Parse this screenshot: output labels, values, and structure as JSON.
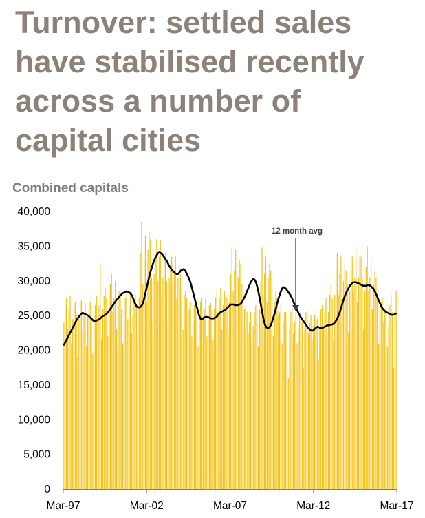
{
  "title_lines": [
    "Turnover: settled sales",
    "have stabilised recently",
    "across a number of",
    "capital cities"
  ],
  "chart_data": {
    "type": "bar",
    "subtitle": "Combined capitals",
    "ylim": [
      0,
      40000
    ],
    "y_ticks": [
      0,
      5000,
      10000,
      15000,
      20000,
      25000,
      30000,
      35000,
      40000
    ],
    "y_tick_labels": [
      "0",
      "5,000",
      "10,000",
      "15,000",
      "20,000",
      "25,000",
      "30,000",
      "35,000",
      "40,000"
    ],
    "x_tick_labels": [
      "Mar-97",
      "Mar-02",
      "Mar-07",
      "Mar-12",
      "Mar-17"
    ],
    "x_start": "Mar-97",
    "x_end": "Mar-17",
    "annotation": "12 month avg",
    "colors": {
      "bars": "#f5c317",
      "line": "#000000"
    },
    "series": [
      {
        "type": "bar",
        "values": [
          24000,
          26500,
          27500,
          23000,
          25800,
          27800,
          21000,
          24500,
          26200,
          27000,
          25000,
          19000,
          24500,
          27000,
          27300,
          22500,
          25000,
          26800,
          20500,
          24800,
          26000,
          27000,
          24800,
          19500,
          25000,
          26500,
          27800,
          24000,
          26500,
          32500,
          21500,
          26000,
          27800,
          29000,
          27500,
          22000,
          27000,
          29500,
          31000,
          25500,
          27500,
          30000,
          23000,
          27000,
          28500,
          27800,
          26000,
          21000,
          26000,
          27500,
          28000,
          24500,
          26500,
          28500,
          22500,
          25000,
          27500,
          28000,
          26500,
          21500,
          27500,
          34000,
          38500,
          29500,
          33000,
          36500,
          27000,
          34500,
          37000,
          36000,
          30500,
          24000,
          31000,
          33500,
          36000,
          30000,
          33500,
          35800,
          28000,
          30500,
          33500,
          34000,
          30000,
          23500,
          30500,
          32000,
          33500,
          29500,
          31500,
          33500,
          27500,
          30500,
          32500,
          31000,
          29000,
          23000,
          28000,
          28500,
          27500,
          25000,
          26000,
          27000,
          22000,
          24000,
          26500,
          27000,
          25500,
          20500,
          25000,
          27000,
          27500,
          24500,
          26000,
          27500,
          22000,
          24500,
          26500,
          26800,
          26000,
          21500,
          26000,
          27500,
          28500,
          25500,
          27500,
          29000,
          23000,
          26500,
          28500,
          28000,
          27500,
          23000,
          27000,
          31000,
          34800,
          28500,
          31500,
          34500,
          26000,
          30500,
          33000,
          32500,
          29500,
          23000,
          26000,
          26500,
          25500,
          22500,
          24000,
          25500,
          21000,
          23500,
          25500,
          26500,
          24000,
          20500,
          26000,
          29500,
          34800,
          28000,
          31000,
          33500,
          27000,
          30500,
          32500,
          31500,
          29500,
          22000,
          27000,
          28500,
          27500,
          25000,
          25500,
          26500,
          21000,
          24000,
          25500,
          25500,
          24000,
          16000,
          23000,
          25500,
          26000,
          22500,
          24000,
          25500,
          21000,
          23000,
          25000,
          25500,
          24000,
          17500,
          23000,
          25500,
          26000,
          22500,
          24000,
          25000,
          21500,
          23500,
          25000,
          26000,
          24500,
          18500,
          23500,
          26000,
          26500,
          23500,
          25500,
          27500,
          22500,
          25500,
          28000,
          29500,
          27500,
          21500,
          28000,
          31500,
          34000,
          28000,
          31000,
          33500,
          26500,
          30000,
          32500,
          31500,
          29500,
          22500,
          28500,
          31500,
          33500,
          28500,
          30500,
          34500,
          27000,
          30500,
          33500,
          33500,
          30500,
          23000,
          28500,
          32000,
          35000,
          28500,
          30500,
          33500,
          26000,
          29500,
          31500,
          30500,
          28000,
          21000,
          26500,
          27000,
          27500,
          24000,
          25500,
          27500,
          20500,
          23500,
          26500,
          28000,
          25500,
          17500,
          25000,
          28500
        ]
      },
      {
        "type": "line",
        "name": "12 month avg",
        "values": [
          20800,
          21200,
          21600,
          22000,
          22400,
          22800,
          23200,
          23600,
          24000,
          24400,
          24700,
          25000,
          25200,
          25400,
          25300,
          25200,
          25100,
          25000,
          24800,
          24600,
          24400,
          24200,
          24200,
          24300,
          24400,
          24500,
          24700,
          24900,
          25000,
          25100,
          25300,
          25500,
          25800,
          26100,
          26400,
          26700,
          27000,
          27300,
          27500,
          27800,
          28000,
          28200,
          28300,
          28400,
          28500,
          28400,
          28300,
          28100,
          27800,
          27200,
          26700,
          26300,
          26200,
          26200,
          26300,
          26600,
          27200,
          28100,
          29000,
          29900,
          30800,
          31500,
          32200,
          32800,
          33300,
          33700,
          34000,
          34100,
          34000,
          33800,
          33500,
          33200,
          32900,
          32500,
          32100,
          31800,
          31500,
          31300,
          31100,
          31000,
          31000,
          31200,
          31500,
          31600,
          31700,
          31500,
          31100,
          30700,
          30200,
          29600,
          28800,
          28000,
          27200,
          26400,
          25600,
          24900,
          24500,
          24500,
          24700,
          24800,
          24800,
          24800,
          24700,
          24600,
          24600,
          24600,
          24700,
          24800,
          25100,
          25300,
          25500,
          25600,
          25700,
          25800,
          26000,
          26200,
          26400,
          26600,
          26600,
          26600,
          26500,
          26500,
          26500,
          26600,
          26700,
          27000,
          27400,
          27800,
          28300,
          28800,
          29300,
          29800,
          30100,
          30300,
          30100,
          29600,
          28800,
          27800,
          26700,
          25600,
          24500,
          23700,
          23300,
          23200,
          23300,
          23600,
          24100,
          24800,
          25500,
          26300,
          27100,
          27800,
          28400,
          28900,
          29100,
          29000,
          28800,
          28500,
          28200,
          27900,
          27500,
          27000,
          26500,
          26000,
          25600,
          25200,
          24800,
          24500,
          24200,
          23900,
          23600,
          23300,
          23100,
          22900,
          22800,
          22900,
          23100,
          23300,
          23400,
          23300,
          23200,
          23200,
          23300,
          23400,
          23500,
          23600,
          23600,
          23700,
          23700,
          23800,
          24000,
          24300,
          24700,
          25200,
          25800,
          26500,
          27200,
          27800,
          28300,
          28700,
          29100,
          29400,
          29600,
          29800,
          29800,
          29800,
          29700,
          29600,
          29500,
          29400,
          29300,
          29300,
          29300,
          29400,
          29400,
          29300,
          29100,
          28900,
          28500,
          28100,
          27600,
          27100,
          26600,
          26200,
          25900,
          25700,
          25500,
          25400,
          25300,
          25200,
          25100,
          25100,
          25200,
          25300
        ]
      }
    ]
  }
}
